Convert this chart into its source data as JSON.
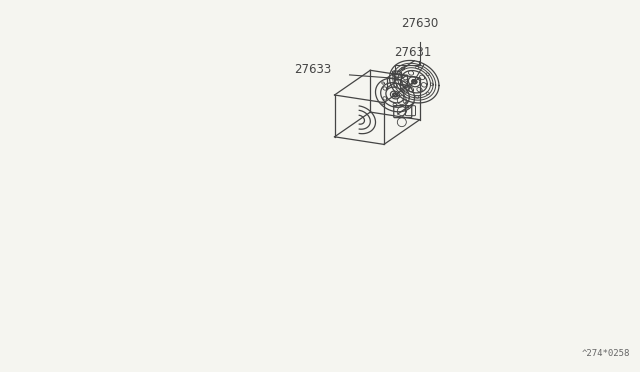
{
  "bg_color": "#f5f5f0",
  "line_color": "#444444",
  "label_color": "#333333",
  "watermark": "^274*0258",
  "labels": {
    "27630": [
      0.455,
      0.865
    ],
    "27631": [
      0.545,
      0.74
    ],
    "27633": [
      0.215,
      0.6
    ]
  },
  "figsize": [
    6.4,
    3.72
  ],
  "dpi": 100,
  "lw": 0.9
}
